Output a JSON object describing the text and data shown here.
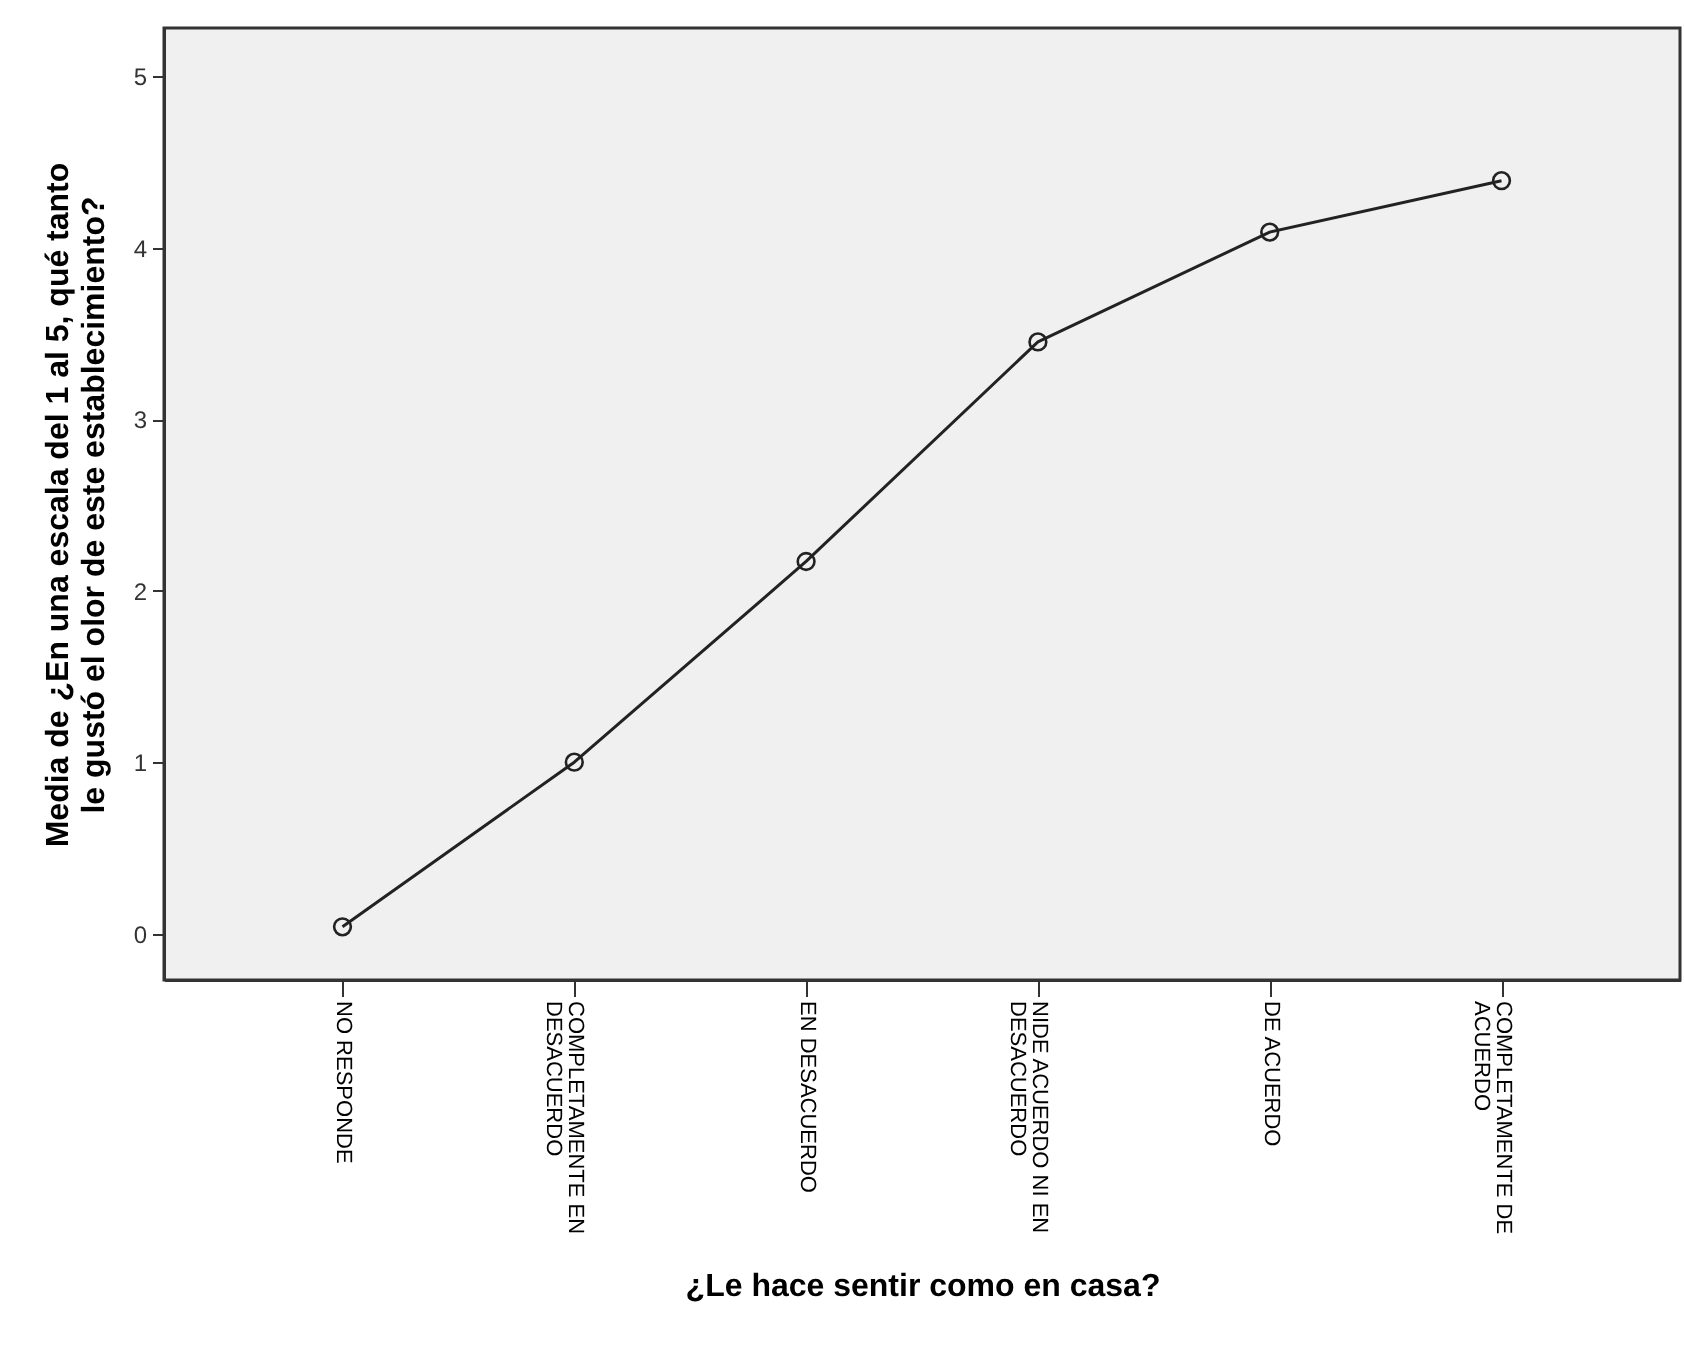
{
  "chart_data": {
    "type": "line",
    "xlabel": "¿Le hace sentir como en casa?",
    "ylabel": "Media de ¿En una escala del 1 al 5, qué tanto le gustó el olor de este establecimiento?",
    "categories": [
      "NO RESPONDE",
      "COMPLETAMENTE EN DESACUERDO",
      "EN DESACUERDO",
      "NIDE ACUERDO NI EN DESACUERDO",
      "DE ACUERDO",
      "COMPLETAMENTE DE ACUERDO"
    ],
    "series": [
      {
        "color": "#222222",
        "values": [
          0.04,
          1.0,
          2.17,
          3.45,
          4.09,
          4.39
        ]
      }
    ],
    "ylim": [
      -0.27,
      5.28
    ],
    "yticks": [
      0,
      1,
      2,
      3,
      4,
      5
    ],
    "grid": false,
    "marker": "circle",
    "line_style": "solid"
  }
}
